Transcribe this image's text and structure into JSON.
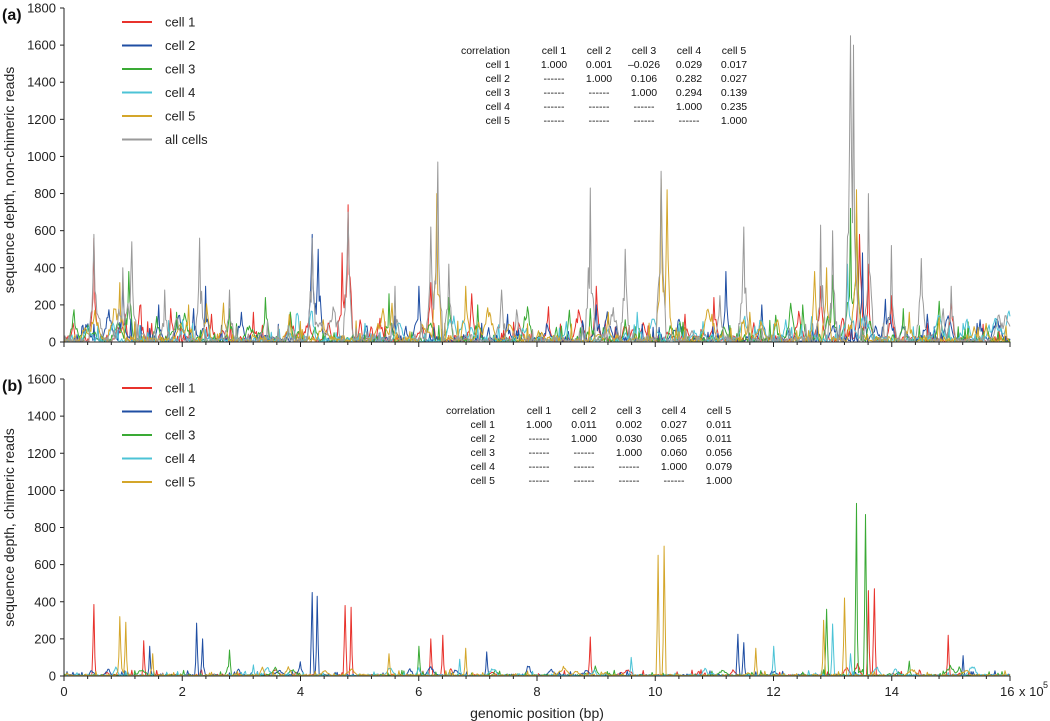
{
  "chart_data": [
    {
      "type": "line",
      "panel_label": "(a)",
      "xlabel": "",
      "ylabel": "sequence depth, non-chimeric reads",
      "xlim": [
        0,
        1600000
      ],
      "ylim": [
        0,
        1800
      ],
      "y_ticks": [
        "0",
        "200",
        "400",
        "600",
        "800",
        "1000",
        "1200",
        "1400",
        "1600",
        "1800"
      ],
      "legend_position": "top-left",
      "series": [
        {
          "name": "cell 1",
          "color": "#e8322c",
          "peaks": [
            [
              50000,
              560
            ],
            [
              130000,
              200
            ],
            [
              180000,
              180
            ],
            [
              250000,
              150
            ],
            [
              320000,
              160
            ],
            [
              480000,
              740
            ],
            [
              470000,
              480
            ],
            [
              620000,
              320
            ],
            [
              690000,
              260
            ],
            [
              820000,
              190
            ],
            [
              900000,
              300
            ],
            [
              1050000,
              150
            ],
            [
              1100000,
              240
            ],
            [
              1280000,
              300
            ],
            [
              1345000,
              580
            ],
            [
              1360000,
              420
            ],
            [
              1400000,
              250
            ],
            [
              1500000,
              230
            ]
          ]
        },
        {
          "name": "cell 2",
          "color": "#1f4ea3",
          "peaks": [
            [
              100000,
              300
            ],
            [
              160000,
              200
            ],
            [
              220000,
              180
            ],
            [
              240000,
              300
            ],
            [
              300000,
              160
            ],
            [
              420000,
              580
            ],
            [
              430000,
              500
            ],
            [
              560000,
              140
            ],
            [
              600000,
              300
            ],
            [
              750000,
              150
            ],
            [
              900000,
              200
            ],
            [
              1120000,
              380
            ],
            [
              1180000,
              200
            ],
            [
              1350000,
              480
            ],
            [
              1390000,
              230
            ],
            [
              1460000,
              150
            ],
            [
              1550000,
              120
            ]
          ]
        },
        {
          "name": "cell 3",
          "color": "#3aaa35",
          "peaks": [
            [
              110000,
              380
            ],
            [
              190000,
              160
            ],
            [
              280000,
              180
            ],
            [
              340000,
              240
            ],
            [
              550000,
              260
            ],
            [
              650000,
              240
            ],
            [
              700000,
              200
            ],
            [
              890000,
              180
            ],
            [
              950000,
              120
            ],
            [
              1250000,
              200
            ],
            [
              1300000,
              360
            ],
            [
              1330000,
              720
            ],
            [
              1340000,
              700
            ],
            [
              1420000,
              180
            ],
            [
              1480000,
              220
            ]
          ]
        },
        {
          "name": "cell 4",
          "color": "#4cc3d6",
          "peaks": [
            [
              80000,
              80
            ],
            [
              200000,
              120
            ],
            [
              380000,
              90
            ],
            [
              510000,
              100
            ],
            [
              660000,
              140
            ],
            [
              850000,
              110
            ],
            [
              970000,
              160
            ],
            [
              1080000,
              110
            ],
            [
              1220000,
              120
            ],
            [
              1325000,
              420
            ],
            [
              1520000,
              100
            ]
          ]
        },
        {
          "name": "cell 5",
          "color": "#d4a62a",
          "peaks": [
            [
              95000,
              320
            ],
            [
              210000,
              200
            ],
            [
              270000,
              210
            ],
            [
              540000,
              180
            ],
            [
              630000,
              800
            ],
            [
              680000,
              300
            ],
            [
              920000,
              160
            ],
            [
              1010000,
              880
            ],
            [
              1020000,
              820
            ],
            [
              1160000,
              160
            ],
            [
              1270000,
              380
            ],
            [
              1290000,
              400
            ],
            [
              1340000,
              820
            ],
            [
              1430000,
              160
            ],
            [
              1560000,
              100
            ]
          ]
        },
        {
          "name": "all cells",
          "color": "#9a9a9a",
          "peaks": [
            [
              50000,
              580
            ],
            [
              100000,
              400
            ],
            [
              115000,
              540
            ],
            [
              170000,
              280
            ],
            [
              230000,
              560
            ],
            [
              280000,
              280
            ],
            [
              420000,
              560
            ],
            [
              480000,
              700
            ],
            [
              560000,
              300
            ],
            [
              620000,
              620
            ],
            [
              632000,
              970
            ],
            [
              650000,
              420
            ],
            [
              740000,
              280
            ],
            [
              890000,
              830
            ],
            [
              950000,
              500
            ],
            [
              1010000,
              920
            ],
            [
              1110000,
              250
            ],
            [
              1150000,
              620
            ],
            [
              1280000,
              630
            ],
            [
              1300000,
              600
            ],
            [
              1330000,
              1650
            ],
            [
              1336000,
              1600
            ],
            [
              1360000,
              800
            ],
            [
              1400000,
              520
            ],
            [
              1450000,
              450
            ],
            [
              1500000,
              300
            ]
          ]
        }
      ]
    },
    {
      "type": "line",
      "panel_label": "(b)",
      "xlabel": "genomic position (bp)",
      "ylabel": "sequence depth, chimeric reads",
      "xlim": [
        0,
        1600000
      ],
      "ylim": [
        0,
        1600
      ],
      "x_tick_labels": [
        "0",
        "2",
        "4",
        "6",
        "8",
        "10",
        "12",
        "14",
        "16"
      ],
      "x_tick_values": [
        0,
        200000,
        400000,
        600000,
        800000,
        1000000,
        1200000,
        1400000,
        1600000
      ],
      "x_scale_label": "x 10",
      "x_scale_exponent": "5",
      "y_ticks": [
        "0",
        "200",
        "400",
        "600",
        "800",
        "1000",
        "1200",
        "1400",
        "1600"
      ],
      "legend_position": "top-left",
      "series": [
        {
          "name": "cell 1",
          "color": "#e8322c",
          "peaks": [
            [
              50000,
              385
            ],
            [
              135000,
              190
            ],
            [
              475000,
              380
            ],
            [
              485000,
              370
            ],
            [
              620000,
              200
            ],
            [
              640000,
              220
            ],
            [
              890000,
              210
            ],
            [
              1360000,
              460
            ],
            [
              1370000,
              470
            ],
            [
              1495000,
              220
            ]
          ]
        },
        {
          "name": "cell 2",
          "color": "#1f4ea3",
          "peaks": [
            [
              145000,
              160
            ],
            [
              225000,
              285
            ],
            [
              235000,
              200
            ],
            [
              420000,
              450
            ],
            [
              428000,
              430
            ],
            [
              715000,
              130
            ],
            [
              1140000,
              225
            ],
            [
              1150000,
              180
            ],
            [
              1520000,
              110
            ]
          ]
        },
        {
          "name": "cell 3",
          "color": "#3aaa35",
          "peaks": [
            [
              280000,
              140
            ],
            [
              600000,
              160
            ],
            [
              1290000,
              360
            ],
            [
              1340000,
              930
            ],
            [
              1355000,
              870
            ],
            [
              1430000,
              80
            ]
          ]
        },
        {
          "name": "cell 4",
          "color": "#4cc3d6",
          "peaks": [
            [
              320000,
              60
            ],
            [
              670000,
              90
            ],
            [
              960000,
              100
            ],
            [
              1200000,
              160
            ],
            [
              1300000,
              280
            ],
            [
              1330000,
              120
            ]
          ]
        },
        {
          "name": "cell 5",
          "color": "#d4a62a",
          "peaks": [
            [
              95000,
              320
            ],
            [
              105000,
              290
            ],
            [
              150000,
              120
            ],
            [
              550000,
              120
            ],
            [
              680000,
              150
            ],
            [
              1005000,
              650
            ],
            [
              1015000,
              700
            ],
            [
              1170000,
              150
            ],
            [
              1285000,
              300
            ],
            [
              1320000,
              420
            ]
          ]
        }
      ]
    }
  ],
  "tables": [
    {
      "header": [
        "correlation",
        "cell 1",
        "cell 2",
        "cell 3",
        "cell 4",
        "cell 5"
      ],
      "rows": [
        [
          "cell 1",
          "1.000",
          "0.001",
          "–0.026",
          "0.029",
          "0.017"
        ],
        [
          "cell 2",
          "------",
          "1.000",
          "0.106",
          "0.282",
          "0.027"
        ],
        [
          "cell 3",
          "------",
          "------",
          "1.000",
          "0.294",
          "0.139"
        ],
        [
          "cell 4",
          "------",
          "------",
          "------",
          "1.000",
          "0.235"
        ],
        [
          "cell 5",
          "------",
          "------",
          "------",
          "------",
          "1.000"
        ]
      ]
    },
    {
      "header": [
        "correlation",
        "cell 1",
        "cell 2",
        "cell 3",
        "cell 4",
        "cell 5"
      ],
      "rows": [
        [
          "cell 1",
          "1.000",
          "0.011",
          "0.002",
          "0.027",
          "0.011"
        ],
        [
          "cell 2",
          "------",
          "1.000",
          "0.030",
          "0.065",
          "0.011"
        ],
        [
          "cell 3",
          "------",
          "------",
          "1.000",
          "0.060",
          "0.056"
        ],
        [
          "cell 4",
          "------",
          "------",
          "------",
          "1.000",
          "0.079"
        ],
        [
          "cell 5",
          "------",
          "------",
          "------",
          "------",
          "1.000"
        ]
      ]
    }
  ]
}
